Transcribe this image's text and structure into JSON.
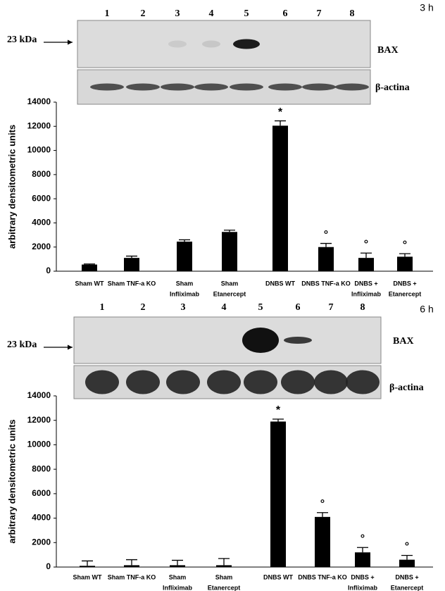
{
  "chart_data": [
    {
      "type": "bar",
      "blot": {
        "time": "3 h",
        "lanes": [
          "1",
          "2",
          "3",
          "4",
          "5",
          "6",
          "7",
          "8"
        ],
        "marker": "23 kDa",
        "bands": [
          "BAX",
          "β-actina"
        ]
      },
      "ylabel": "arbitrary densitometric units",
      "categories": [
        [
          "Sham WT"
        ],
        [
          "Sham TNF-a KO"
        ],
        [
          "Sham",
          "Infliximab"
        ],
        [
          "Sham",
          "Etanercept"
        ],
        [
          "DNBS WT"
        ],
        [
          "DNBS TNF-a KO"
        ],
        [
          "DNBS +",
          "Infliximab"
        ],
        [
          "DNBS +",
          "Etanercept"
        ]
      ],
      "values": [
        550,
        1100,
        2450,
        3250,
        12050,
        2000,
        1100,
        1200
      ],
      "errors": [
        50,
        150,
        150,
        150,
        400,
        300,
        400,
        250
      ],
      "color": "#000000",
      "annotations": [
        {
          "category": "DNBS WT",
          "text": "*"
        },
        {
          "category": "DNBS TNF-a KO",
          "text": "°"
        },
        {
          "category": "DNBS +",
          "text": "°"
        },
        {
          "category": "DNBS + Etanercept",
          "text": "°"
        }
      ],
      "ylim": [
        0,
        14000
      ],
      "yticks": [
        0,
        2000,
        4000,
        6000,
        8000,
        10000,
        12000,
        14000
      ]
    },
    {
      "type": "bar",
      "blot": {
        "time": "6 h",
        "lanes": [
          "1",
          "2",
          "3",
          "4",
          "5",
          "6",
          "7",
          "8"
        ],
        "marker": "23 kDa",
        "bands": [
          "BAX",
          "β-actina"
        ]
      },
      "ylabel": "arbitrary densitometric units",
      "categories": [
        [
          "Sham WT"
        ],
        [
          "Sham TNF-a KO"
        ],
        [
          "Sham",
          "Infliximab"
        ],
        [
          "Sham",
          "Etanercept"
        ],
        [
          "DNBS WT"
        ],
        [
          "DNBS TNF-a KO"
        ],
        [
          "DNBS +",
          "Infliximab"
        ],
        [
          "DNBS +",
          "Etanercept"
        ]
      ],
      "values": [
        100,
        150,
        150,
        150,
        11900,
        4100,
        1200,
        600
      ],
      "errors": [
        400,
        450,
        400,
        550,
        200,
        350,
        400,
        350
      ],
      "color": "#000000",
      "annotations": [
        {
          "category": "DNBS WT",
          "text": "*"
        },
        {
          "category": "DNBS TNF-a KO",
          "text": "°"
        },
        {
          "category": "DNBS +",
          "text": "°"
        },
        {
          "category": "DNBS + Etanercept",
          "text": "°"
        }
      ],
      "ylim": [
        0,
        14000
      ],
      "yticks": [
        0,
        2000,
        4000,
        6000,
        8000,
        10000,
        12000,
        14000
      ]
    }
  ]
}
